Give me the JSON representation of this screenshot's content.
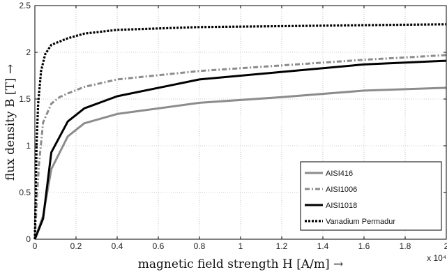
{
  "chart_data": {
    "type": "line",
    "xlabel": "magnetic field strength H  [A/m]  →",
    "ylabel": "flux density B  [T]  →",
    "x_multiplier_label": "x 10⁴",
    "xlim": [
      0,
      2
    ],
    "ylim": [
      0,
      2.5
    ],
    "x_ticks": [
      "0",
      "0.2",
      "0.4",
      "0.6",
      "0.8",
      "1",
      "1.2",
      "1.4",
      "1.6",
      "1.8",
      "2"
    ],
    "y_ticks": [
      "0",
      "0.5",
      "1",
      "1.5",
      "2",
      "2.5"
    ],
    "grid": true,
    "legend_position": "bottom-right",
    "series": [
      {
        "name": "AISI416",
        "color": "#8c8c8c",
        "dash": "solid",
        "points": [
          [
            0,
            0
          ],
          [
            0.04,
            0.25
          ],
          [
            0.08,
            0.75
          ],
          [
            0.16,
            1.1
          ],
          [
            0.24,
            1.24
          ],
          [
            0.4,
            1.34
          ],
          [
            0.8,
            1.46
          ],
          [
            1.2,
            1.52
          ],
          [
            1.6,
            1.59
          ],
          [
            2.0,
            1.62
          ]
        ]
      },
      {
        "name": "AISI1006",
        "color": "#8c8c8c",
        "dash": "dashdot",
        "points": [
          [
            0,
            0
          ],
          [
            0.01,
            0.45
          ],
          [
            0.02,
            0.8
          ],
          [
            0.04,
            1.25
          ],
          [
            0.08,
            1.45
          ],
          [
            0.12,
            1.52
          ],
          [
            0.16,
            1.56
          ],
          [
            0.24,
            1.63
          ],
          [
            0.4,
            1.71
          ],
          [
            0.8,
            1.8
          ],
          [
            1.2,
            1.86
          ],
          [
            1.6,
            1.92
          ],
          [
            2.0,
            1.97
          ]
        ]
      },
      {
        "name": "AISI1018",
        "color": "#000000",
        "dash": "solid",
        "points": [
          [
            0,
            0
          ],
          [
            0.04,
            0.22
          ],
          [
            0.08,
            0.93
          ],
          [
            0.16,
            1.26
          ],
          [
            0.24,
            1.4
          ],
          [
            0.4,
            1.53
          ],
          [
            0.8,
            1.71
          ],
          [
            1.2,
            1.79
          ],
          [
            1.6,
            1.87
          ],
          [
            2.0,
            1.91
          ]
        ]
      },
      {
        "name": "Vanadium Permadur",
        "color": "#000000",
        "dash": "dotted",
        "points": [
          [
            0,
            0
          ],
          [
            0.008,
            1.0
          ],
          [
            0.016,
            1.45
          ],
          [
            0.03,
            1.8
          ],
          [
            0.05,
            1.98
          ],
          [
            0.08,
            2.08
          ],
          [
            0.16,
            2.15
          ],
          [
            0.24,
            2.2
          ],
          [
            0.4,
            2.24
          ],
          [
            0.8,
            2.27
          ],
          [
            1.2,
            2.28
          ],
          [
            1.6,
            2.29
          ],
          [
            2.0,
            2.3
          ]
        ]
      }
    ]
  }
}
